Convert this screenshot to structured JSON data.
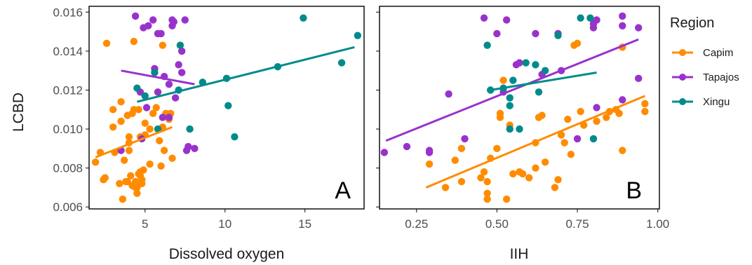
{
  "chart_data": {
    "type": "scatter",
    "ylabel": "LCBD",
    "y_ticks": [
      "0.006",
      "0.008",
      "0.010",
      "0.012",
      "0.014",
      "0.016"
    ],
    "ylim": [
      0.0059,
      0.0163
    ],
    "legend": {
      "title": "Region",
      "position": "right",
      "entries": [
        "Capim",
        "Tapajos",
        "Xingu"
      ]
    },
    "colors": {
      "Capim": "#ff8c00",
      "Tapajos": "#9932cc",
      "Xingu": "#008b8b"
    },
    "panels": [
      {
        "label": "A",
        "xlabel": "Dissolved oxygen",
        "x_ticks": [
          "5",
          "10",
          "15"
        ],
        "xlim": [
          1.5,
          18.7
        ],
        "series": [
          {
            "name": "Capim",
            "points": [
              [
                1.9,
                0.0083
              ],
              [
                2.2,
                0.0088
              ],
              [
                2.4,
                0.0074
              ],
              [
                2.5,
                0.0075
              ],
              [
                2.6,
                0.0144
              ],
              [
                3.0,
                0.011
              ],
              [
                3.0,
                0.0101
              ],
              [
                3.1,
                0.0088
              ],
              [
                3.4,
                0.0072
              ],
              [
                3.5,
                0.0114
              ],
              [
                3.5,
                0.0104
              ],
              [
                3.6,
                0.0064
              ],
              [
                3.7,
                0.0084
              ],
              [
                3.8,
                0.0073
              ],
              [
                3.9,
                0.0073
              ],
              [
                3.9,
                0.0107
              ],
              [
                4.0,
                0.0096
              ],
              [
                4.0,
                0.0093
              ],
              [
                4.0,
                0.0089
              ],
              [
                4.1,
                0.0076
              ],
              [
                4.2,
                0.0108
              ],
              [
                4.2,
                0.0071
              ],
              [
                4.3,
                0.011
              ],
              [
                4.3,
                0.0145
              ],
              [
                4.4,
                0.007
              ],
              [
                4.4,
                0.0073
              ],
              [
                4.5,
                0.0067
              ],
              [
                4.5,
                0.007
              ],
              [
                4.6,
                0.011
              ],
              [
                4.6,
                0.0077
              ],
              [
                4.7,
                0.0078
              ],
              [
                4.7,
                0.0096
              ],
              [
                4.7,
                0.0076
              ],
              [
                4.8,
                0.0074
              ],
              [
                4.8,
                0.0072
              ],
              [
                4.9,
                0.0079
              ],
              [
                5.0,
                0.0097
              ],
              [
                5.0,
                0.0103
              ],
              [
                5.3,
                0.0082
              ],
              [
                5.3,
                0.01
              ],
              [
                5.5,
                0.0108
              ],
              [
                5.6,
                0.0131
              ],
              [
                5.7,
                0.0111
              ],
              [
                5.8,
                0.0119
              ],
              [
                5.9,
                0.0094
              ],
              [
                6.0,
                0.0081
              ],
              [
                6.1,
                0.0143
              ],
              [
                6.1,
                0.0101
              ],
              [
                6.2,
                0.0089
              ],
              [
                6.3,
                0.0108
              ],
              [
                6.5,
                0.0105
              ],
              [
                6.6,
                0.0108
              ],
              [
                6.7,
                0.0085
              ]
            ],
            "trend": [
              [
                1.9,
                0.00855
              ],
              [
                6.7,
                0.0101
              ]
            ]
          },
          {
            "name": "Tapajos",
            "points": [
              [
                3.5,
                0.0089
              ],
              [
                4.4,
                0.0158
              ],
              [
                4.7,
                0.0119
              ],
              [
                4.8,
                0.0095
              ],
              [
                4.9,
                0.0152
              ],
              [
                5.1,
                0.0111
              ],
              [
                5.2,
                0.0153
              ],
              [
                5.5,
                0.0156
              ],
              [
                5.6,
                0.0131
              ],
              [
                5.8,
                0.0149
              ],
              [
                5.8,
                0.0119
              ],
              [
                6.0,
                0.0149
              ],
              [
                6.1,
                0.0106
              ],
              [
                6.2,
                0.0127
              ],
              [
                6.5,
                0.0123
              ],
              [
                6.5,
                0.0106
              ],
              [
                6.7,
                0.0153
              ],
              [
                6.7,
                0.0156
              ],
              [
                6.8,
                0.0155
              ],
              [
                6.9,
                0.0116
              ],
              [
                7.1,
                0.0133
              ],
              [
                7.3,
                0.014
              ],
              [
                7.3,
                0.0129
              ],
              [
                7.5,
                0.0156
              ],
              [
                7.6,
                0.0089
              ],
              [
                7.7,
                0.0091
              ],
              [
                8.1,
                0.009
              ]
            ],
            "trend": [
              [
                3.5,
                0.013
              ],
              [
                8.1,
                0.0123
              ]
            ]
          },
          {
            "name": "Xingu",
            "points": [
              [
                4.5,
                0.0121
              ],
              [
                5.0,
                0.0117
              ],
              [
                5.6,
                0.0129
              ],
              [
                5.8,
                0.01
              ],
              [
                7.1,
                0.012
              ],
              [
                7.2,
                0.0143
              ],
              [
                7.8,
                0.01
              ],
              [
                8.6,
                0.0124
              ],
              [
                10.1,
                0.0126
              ],
              [
                10.2,
                0.0112
              ],
              [
                10.6,
                0.0096
              ],
              [
                13.3,
                0.0132
              ],
              [
                14.9,
                0.0157
              ],
              [
                17.3,
                0.0134
              ],
              [
                18.3,
                0.0148
              ]
            ],
            "trend": [
              [
                4.5,
                0.0114
              ],
              [
                18.1,
                0.0142
              ]
            ]
          }
        ]
      },
      {
        "label": "B",
        "xlabel": "IIH",
        "x_ticks": [
          "0.25",
          "0.50",
          "0.75",
          "1.00"
        ],
        "xlim": [
          0.135,
          1.005
        ],
        "series": [
          {
            "name": "Capim",
            "points": [
              [
                0.29,
                0.0082
              ],
              [
                0.34,
                0.007
              ],
              [
                0.37,
                0.0084
              ],
              [
                0.39,
                0.0073
              ],
              [
                0.39,
                0.009
              ],
              [
                0.45,
                0.0075
              ],
              [
                0.46,
                0.0078
              ],
              [
                0.47,
                0.0067
              ],
              [
                0.47,
                0.0064
              ],
              [
                0.47,
                0.0073
              ],
              [
                0.48,
                0.0085
              ],
              [
                0.5,
                0.009
              ],
              [
                0.51,
                0.0106
              ],
              [
                0.51,
                0.0108
              ],
              [
                0.52,
                0.0125
              ],
              [
                0.53,
                0.0064
              ],
              [
                0.54,
                0.0102
              ],
              [
                0.55,
                0.0077
              ],
              [
                0.57,
                0.0078
              ],
              [
                0.58,
                0.0077
              ],
              [
                0.6,
                0.0075
              ],
              [
                0.62,
                0.0093
              ],
              [
                0.62,
                0.008
              ],
              [
                0.63,
                0.0106
              ],
              [
                0.64,
                0.0107
              ],
              [
                0.65,
                0.0083
              ],
              [
                0.68,
                0.007
              ],
              [
                0.69,
                0.0074
              ],
              [
                0.7,
                0.0097
              ],
              [
                0.71,
                0.0093
              ],
              [
                0.72,
                0.0105
              ],
              [
                0.73,
                0.0087
              ],
              [
                0.74,
                0.0143
              ],
              [
                0.75,
                0.0144
              ],
              [
                0.76,
                0.0109
              ],
              [
                0.77,
                0.0102
              ],
              [
                0.81,
                0.0104
              ],
              [
                0.84,
                0.0106
              ],
              [
                0.85,
                0.0109
              ],
              [
                0.87,
                0.011
              ],
              [
                0.88,
                0.0108
              ],
              [
                0.89,
                0.0089
              ],
              [
                0.89,
                0.0142
              ],
              [
                0.96,
                0.0113
              ],
              [
                0.96,
                0.0109
              ]
            ],
            "trend": [
              [
                0.28,
                0.007
              ],
              [
                0.96,
                0.0117
              ]
            ]
          },
          {
            "name": "Tapajos",
            "points": [
              [
                0.15,
                0.0088
              ],
              [
                0.22,
                0.0091
              ],
              [
                0.29,
                0.0088
              ],
              [
                0.29,
                0.0089
              ],
              [
                0.35,
                0.0118
              ],
              [
                0.4,
                0.0095
              ],
              [
                0.46,
                0.0157
              ],
              [
                0.5,
                0.0149
              ],
              [
                0.52,
                0.0119
              ],
              [
                0.53,
                0.0156
              ],
              [
                0.56,
                0.0133
              ],
              [
                0.57,
                0.0134
              ],
              [
                0.62,
                0.0149
              ],
              [
                0.64,
                0.0128
              ],
              [
                0.69,
                0.0149
              ],
              [
                0.7,
                0.013
              ],
              [
                0.75,
                0.0095
              ],
              [
                0.8,
                0.0152
              ],
              [
                0.8,
                0.0154
              ],
              [
                0.81,
                0.0156
              ],
              [
                0.81,
                0.0111
              ],
              [
                0.89,
                0.0158
              ],
              [
                0.89,
                0.0115
              ],
              [
                0.89,
                0.0153
              ],
              [
                0.94,
                0.0152
              ],
              [
                0.94,
                0.0126
              ]
            ],
            "trend": [
              [
                0.155,
                0.0094
              ],
              [
                0.94,
                0.0146
              ]
            ]
          },
          {
            "name": "Xingu",
            "points": [
              [
                0.47,
                0.0143
              ],
              [
                0.48,
                0.012
              ],
              [
                0.52,
                0.0121
              ],
              [
                0.54,
                0.0112
              ],
              [
                0.54,
                0.0116
              ],
              [
                0.54,
                0.01
              ],
              [
                0.55,
                0.0125
              ],
              [
                0.57,
                0.01
              ],
              [
                0.59,
                0.0134
              ],
              [
                0.62,
                0.0133
              ],
              [
                0.63,
                0.0119
              ],
              [
                0.65,
                0.013
              ],
              [
                0.69,
                0.0148
              ],
              [
                0.76,
                0.0157
              ],
              [
                0.79,
                0.0157
              ],
              [
                0.8,
                0.0095
              ]
            ],
            "trend": [
              [
                0.48,
                0.012
              ],
              [
                0.81,
                0.0129
              ]
            ]
          }
        ]
      }
    ]
  }
}
